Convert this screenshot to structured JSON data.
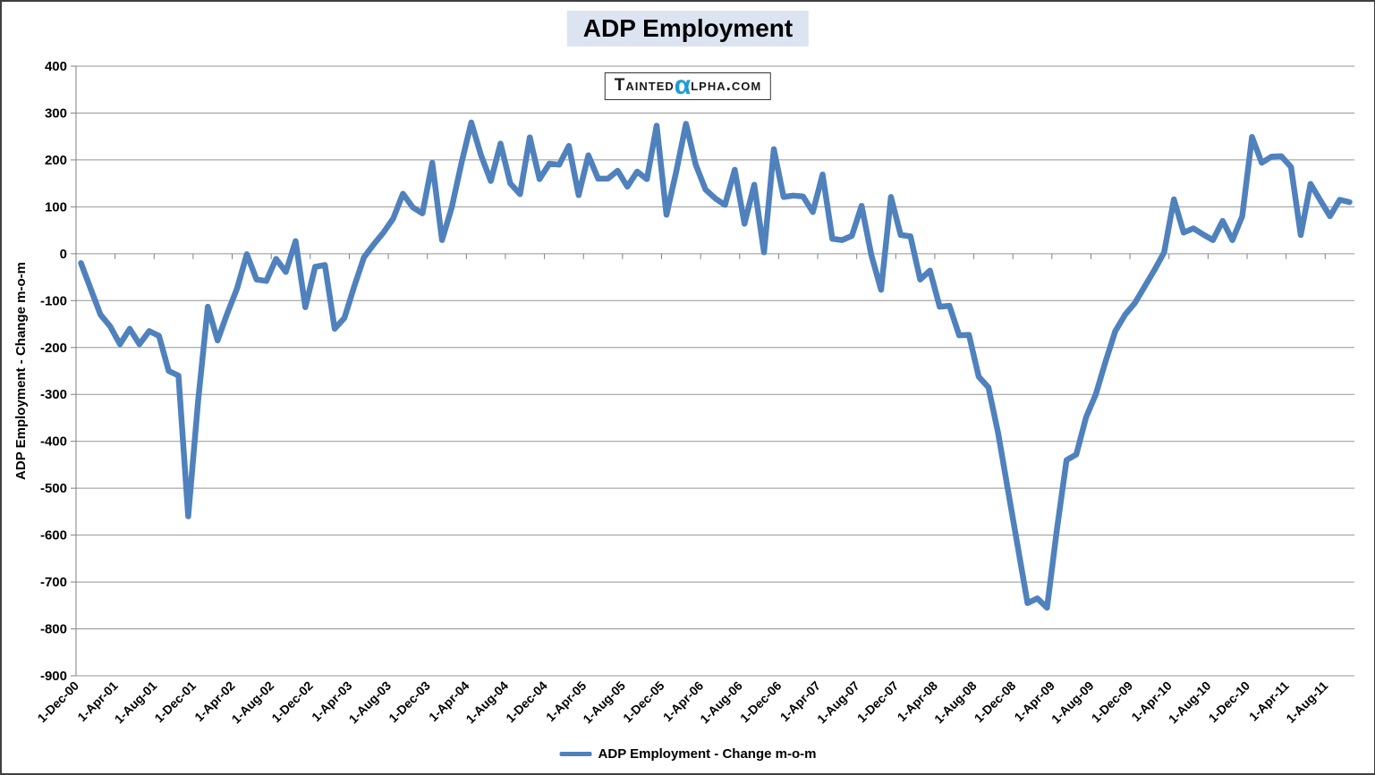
{
  "title": "ADP Employment",
  "watermark": {
    "pre": "Tainted",
    "alpha": "α",
    "post": "lpha.com"
  },
  "legend": {
    "label": "ADP Employment - Change m-o-m",
    "line_color": "#4F81BD"
  },
  "y_axis": {
    "title": "ADP Employment - Change m-o-m",
    "max": 400,
    "min": -900,
    "step": 100,
    "tick_labels": [
      "400",
      "300",
      "200",
      "100",
      "0",
      "-100",
      "-200",
      "-300",
      "-400",
      "-500",
      "-600",
      "-700",
      "-800",
      "-900"
    ]
  },
  "x_axis": {
    "tick_labels": [
      "1-Dec-00",
      "1-Apr-01",
      "1-Aug-01",
      "1-Dec-01",
      "1-Apr-02",
      "1-Aug-02",
      "1-Dec-02",
      "1-Apr-03",
      "1-Aug-03",
      "1-Dec-03",
      "1-Apr-04",
      "1-Aug-04",
      "1-Dec-04",
      "1-Apr-05",
      "1-Aug-05",
      "1-Dec-05",
      "1-Apr-06",
      "1-Aug-06",
      "1-Dec-06",
      "1-Apr-07",
      "1-Aug-07",
      "1-Dec-07",
      "1-Apr-08",
      "1-Aug-08",
      "1-Dec-08",
      "1-Apr-09",
      "1-Aug-09",
      "1-Dec-09",
      "1-Apr-10",
      "1-Aug-10",
      "1-Dec-10",
      "1-Apr-11",
      "1-Aug-11"
    ]
  },
  "chart_data": {
    "type": "line",
    "title": "ADP Employment",
    "ylabel": "ADP Employment - Change m-o-m",
    "xlabel": "",
    "ylim": [
      -900,
      400
    ],
    "grid": "horizontal",
    "legend_position": "bottom-center",
    "frequency": "monthly",
    "start_month": "Dec-2000",
    "end_month": "Oct-2011",
    "categories": [
      "Dec-00",
      "Jan-01",
      "Feb-01",
      "Mar-01",
      "Apr-01",
      "May-01",
      "Jun-01",
      "Jul-01",
      "Aug-01",
      "Sep-01",
      "Oct-01",
      "Nov-01",
      "Dec-01",
      "Jan-02",
      "Feb-02",
      "Mar-02",
      "Apr-02",
      "May-02",
      "Jun-02",
      "Jul-02",
      "Aug-02",
      "Sep-02",
      "Oct-02",
      "Nov-02",
      "Dec-02",
      "Jan-03",
      "Feb-03",
      "Mar-03",
      "Apr-03",
      "May-03",
      "Jun-03",
      "Jul-03",
      "Aug-03",
      "Sep-03",
      "Oct-03",
      "Nov-03",
      "Dec-03",
      "Jan-04",
      "Feb-04",
      "Mar-04",
      "Apr-04",
      "May-04",
      "Jun-04",
      "Jul-04",
      "Aug-04",
      "Sep-04",
      "Oct-04",
      "Nov-04",
      "Dec-04",
      "Jan-05",
      "Feb-05",
      "Mar-05",
      "Apr-05",
      "May-05",
      "Jun-05",
      "Jul-05",
      "Aug-05",
      "Sep-05",
      "Oct-05",
      "Nov-05",
      "Dec-05",
      "Jan-06",
      "Feb-06",
      "Mar-06",
      "Apr-06",
      "May-06",
      "Jun-06",
      "Jul-06",
      "Aug-06",
      "Sep-06",
      "Oct-06",
      "Nov-06",
      "Dec-06",
      "Jan-07",
      "Feb-07",
      "Mar-07",
      "Apr-07",
      "May-07",
      "Jun-07",
      "Jul-07",
      "Aug-07",
      "Sep-07",
      "Oct-07",
      "Nov-07",
      "Dec-07",
      "Jan-08",
      "Feb-08",
      "Mar-08",
      "Apr-08",
      "May-08",
      "Jun-08",
      "Jul-08",
      "Aug-08",
      "Sep-08",
      "Oct-08",
      "Nov-08",
      "Dec-08",
      "Jan-09",
      "Feb-09",
      "Mar-09",
      "Apr-09",
      "May-09",
      "Jun-09",
      "Jul-09",
      "Aug-09",
      "Sep-09",
      "Oct-09",
      "Nov-09",
      "Dec-09",
      "Jan-10",
      "Feb-10",
      "Mar-10",
      "Apr-10",
      "May-10",
      "Jun-10",
      "Jul-10",
      "Aug-10",
      "Sep-10",
      "Oct-10",
      "Nov-10",
      "Dec-10",
      "Jan-11",
      "Feb-11",
      "Mar-11",
      "Apr-11",
      "May-11",
      "Jun-11",
      "Jul-11",
      "Aug-11",
      "Sep-11",
      "Oct-11"
    ],
    "series": [
      {
        "name": "ADP Employment - Change m-o-m",
        "color": "#4F81BD",
        "values": [
          -20,
          -75,
          -130,
          -155,
          -193,
          -160,
          -193,
          -165,
          -175,
          -250,
          -260,
          -560,
          -315,
          -113,
          -185,
          -127,
          -74,
          -1,
          -55,
          -58,
          -11,
          -39,
          27,
          -114,
          -28,
          -24,
          -160,
          -137,
          -70,
          -8,
          20,
          45,
          75,
          128,
          99,
          86,
          194,
          29,
          99,
          194,
          280,
          210,
          155,
          235,
          150,
          127,
          248,
          159,
          192,
          190,
          230,
          125,
          210,
          160,
          160,
          177,
          143,
          175,
          159,
          273,
          83,
          175,
          277,
          190,
          137,
          118,
          104,
          179,
          64,
          147,
          3,
          223,
          121,
          124,
          122,
          89,
          169,
          32,
          29,
          38,
          102,
          -3,
          -77,
          121,
          40,
          37,
          -55,
          -36,
          -113,
          -111,
          -174,
          -173,
          -262,
          -285,
          -383,
          -505,
          -625,
          -745,
          -735,
          -755,
          -590,
          -440,
          -428,
          -349,
          -300,
          -230,
          -165,
          -130,
          -105,
          -70,
          -35,
          3,
          116,
          45,
          54,
          41,
          29,
          70,
          29,
          80,
          249,
          194,
          207,
          208,
          185,
          40,
          149,
          114,
          80,
          115,
          110
        ]
      }
    ]
  }
}
